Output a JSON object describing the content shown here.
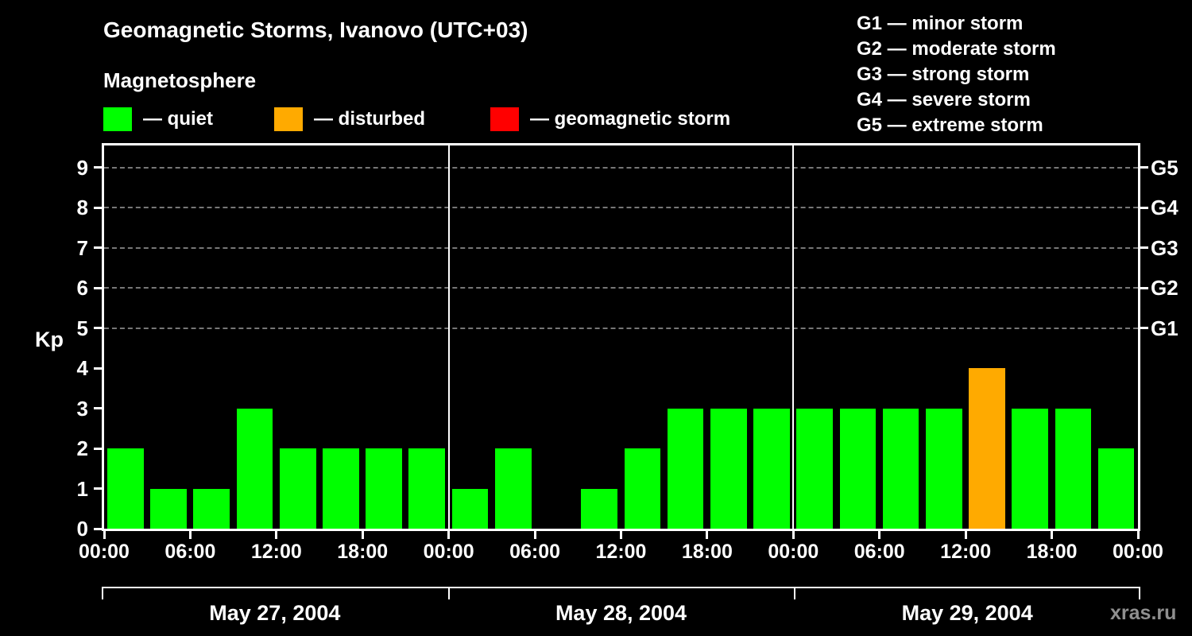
{
  "title": "Geomagnetic Storms, Ivanovo (UTC+03)",
  "subtitle": "Magnetosphere",
  "legend": {
    "items": [
      {
        "key": "quiet",
        "label": "— quiet",
        "color": "#00ff00"
      },
      {
        "key": "disturbed",
        "label": "— disturbed",
        "color": "#ffaa00"
      },
      {
        "key": "storm",
        "label": "— geomagnetic storm",
        "color": "#ff0000"
      }
    ]
  },
  "g_scale": [
    "G1 — minor storm",
    "G2 — moderate storm",
    "G3 — strong storm",
    "G4 — severe storm",
    "G5 — extreme storm"
  ],
  "watermark": "xras.ru",
  "chart_data": {
    "type": "bar",
    "title": "Geomagnetic Storms, Ivanovo (UTC+03)",
    "ylabel": "Kp",
    "ylim": [
      0,
      9.55
    ],
    "yticks": [
      0,
      1,
      2,
      3,
      4,
      5,
      6,
      7,
      8,
      9
    ],
    "gridlines": [
      5,
      6,
      7,
      8,
      9
    ],
    "right_axis": [
      {
        "value": 5,
        "label": "G1"
      },
      {
        "value": 6,
        "label": "G2"
      },
      {
        "value": 7,
        "label": "G3"
      },
      {
        "value": 8,
        "label": "G4"
      },
      {
        "value": 9,
        "label": "G5"
      }
    ],
    "x_tick_labels": [
      "00:00",
      "06:00",
      "12:00",
      "18:00",
      "00:00",
      "06:00",
      "12:00",
      "18:00",
      "00:00",
      "06:00",
      "12:00",
      "18:00",
      "00:00"
    ],
    "interval_hours": 3,
    "days": [
      {
        "date": "May 27, 2004",
        "kp_values": [
          2,
          1,
          1,
          3,
          2,
          2,
          2,
          2
        ]
      },
      {
        "date": "May 28, 2004",
        "kp_values": [
          1,
          2,
          0,
          1,
          2,
          3,
          3,
          3
        ]
      },
      {
        "date": "May 29, 2004",
        "kp_values": [
          3,
          3,
          3,
          3,
          4,
          3,
          3,
          2
        ]
      }
    ],
    "colors": {
      "quiet": "#00ff00",
      "disturbed": "#ffaa00",
      "storm": "#ff0000"
    },
    "color_rule": {
      "disturbed_min": 4,
      "storm_min": 5
    },
    "legend_position": "top",
    "grid": "dashed horizontal at G levels only"
  }
}
